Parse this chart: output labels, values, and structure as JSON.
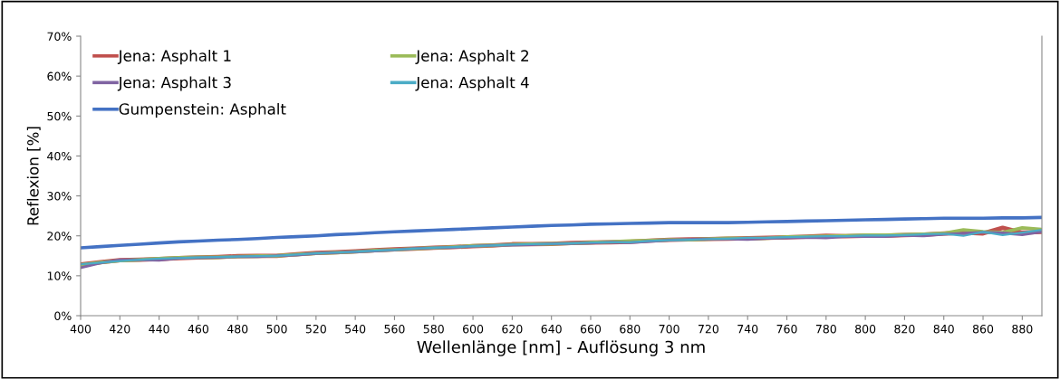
{
  "chart_data": {
    "type": "line",
    "xlabel": "Wellenlänge [nm] - Auflösung 3 nm",
    "ylabel": "Reflexion [%]",
    "x": [
      400,
      410,
      420,
      430,
      440,
      450,
      460,
      470,
      480,
      490,
      500,
      510,
      520,
      530,
      540,
      550,
      560,
      570,
      580,
      590,
      600,
      610,
      620,
      630,
      640,
      650,
      660,
      670,
      680,
      690,
      700,
      710,
      720,
      730,
      740,
      750,
      760,
      770,
      780,
      790,
      800,
      810,
      820,
      830,
      840,
      850,
      860,
      870,
      880,
      890
    ],
    "xlim": [
      400,
      890
    ],
    "xticks": [
      400,
      420,
      440,
      460,
      480,
      500,
      520,
      540,
      560,
      580,
      600,
      620,
      640,
      660,
      680,
      700,
      720,
      740,
      760,
      780,
      800,
      820,
      840,
      860,
      880
    ],
    "ylim": [
      0,
      70
    ],
    "yticks": [
      {
        "value": 0,
        "label": "0%"
      },
      {
        "value": 10,
        "label": "10%"
      },
      {
        "value": 20,
        "label": "20%"
      },
      {
        "value": 30,
        "label": "30%"
      },
      {
        "value": 40,
        "label": "40%"
      },
      {
        "value": 50,
        "label": "50%"
      },
      {
        "value": 60,
        "label": "60%"
      },
      {
        "value": 70,
        "label": "70%"
      }
    ],
    "grid": false,
    "legend": "top left",
    "line_style": "solid",
    "marker": "none",
    "series": [
      {
        "name": "Jena: Asphalt 1",
        "color": "#c0504d",
        "values": [
          12.8,
          13.4,
          13.9,
          14.0,
          14.2,
          14.4,
          14.6,
          14.7,
          14.9,
          15.0,
          15.0,
          15.4,
          15.7,
          15.9,
          16.1,
          16.4,
          16.6,
          16.8,
          17.0,
          17.2,
          17.4,
          17.6,
          17.9,
          17.9,
          18.0,
          18.2,
          18.3,
          18.4,
          18.5,
          18.8,
          19.0,
          19.1,
          19.2,
          19.3,
          19.4,
          19.5,
          19.6,
          19.8,
          20.0,
          19.9,
          20.0,
          20.0,
          20.2,
          20.3,
          20.6,
          20.8,
          20.6,
          22.0,
          20.8,
          21.0
        ]
      },
      {
        "name": "Jena: Asphalt 2",
        "color": "#9bbb59",
        "values": [
          12.7,
          13.3,
          13.8,
          14.0,
          14.3,
          14.5,
          14.6,
          14.6,
          14.8,
          14.9,
          15.0,
          15.3,
          15.6,
          15.8,
          16.0,
          16.3,
          16.5,
          16.8,
          17.0,
          17.2,
          17.5,
          17.6,
          17.8,
          17.9,
          18.0,
          18.1,
          18.3,
          18.5,
          18.7,
          18.8,
          19.0,
          19.0,
          19.2,
          19.4,
          19.3,
          19.4,
          19.7,
          19.8,
          19.9,
          20.0,
          20.2,
          20.2,
          20.3,
          20.4,
          20.6,
          21.5,
          21.0,
          20.8,
          22.0,
          21.6
        ]
      },
      {
        "name": "Jena: Asphalt 3",
        "color": "#8064a2",
        "values": [
          12.0,
          13.2,
          14.0,
          14.0,
          13.9,
          14.4,
          14.5,
          14.6,
          14.8,
          14.8,
          15.0,
          15.2,
          15.6,
          15.8,
          16.0,
          16.2,
          16.5,
          16.8,
          17.0,
          17.1,
          17.4,
          17.6,
          17.7,
          17.8,
          18.0,
          18.1,
          18.2,
          18.4,
          18.3,
          18.6,
          18.9,
          19.1,
          19.2,
          19.2,
          19.1,
          19.4,
          19.5,
          19.6,
          19.5,
          19.8,
          19.9,
          19.8,
          20.1,
          20.0,
          20.4,
          20.6,
          20.9,
          20.7,
          20.3,
          21.0
        ]
      },
      {
        "name": "Jena: Asphalt 4",
        "color": "#4bacc6",
        "values": [
          12.9,
          13.3,
          13.7,
          14.0,
          14.3,
          14.4,
          14.6,
          14.7,
          14.8,
          14.9,
          15.0,
          15.3,
          15.6,
          15.8,
          16.0,
          16.3,
          16.5,
          16.8,
          17.0,
          17.2,
          17.4,
          17.6,
          17.8,
          17.9,
          18.0,
          18.1,
          18.3,
          18.4,
          18.4,
          18.7,
          18.9,
          19.0,
          19.2,
          19.3,
          19.5,
          19.5,
          19.7,
          19.8,
          19.9,
          19.9,
          20.1,
          20.1,
          20.2,
          20.4,
          20.5,
          20.0,
          21.0,
          20.2,
          20.8,
          21.5
        ]
      },
      {
        "name": "Gumpenstein: Asphalt",
        "color": "#4472c4",
        "values": [
          17.0,
          17.3,
          17.6,
          17.9,
          18.2,
          18.5,
          18.7,
          18.9,
          19.1,
          19.3,
          19.6,
          19.8,
          20.0,
          20.3,
          20.5,
          20.8,
          21.0,
          21.2,
          21.4,
          21.6,
          21.8,
          22.0,
          22.2,
          22.4,
          22.6,
          22.7,
          22.9,
          23.0,
          23.1,
          23.2,
          23.3,
          23.3,
          23.3,
          23.3,
          23.4,
          23.5,
          23.6,
          23.7,
          23.8,
          23.9,
          24.0,
          24.1,
          24.2,
          24.3,
          24.4,
          24.4,
          24.4,
          24.5,
          24.5,
          24.6
        ]
      }
    ]
  }
}
